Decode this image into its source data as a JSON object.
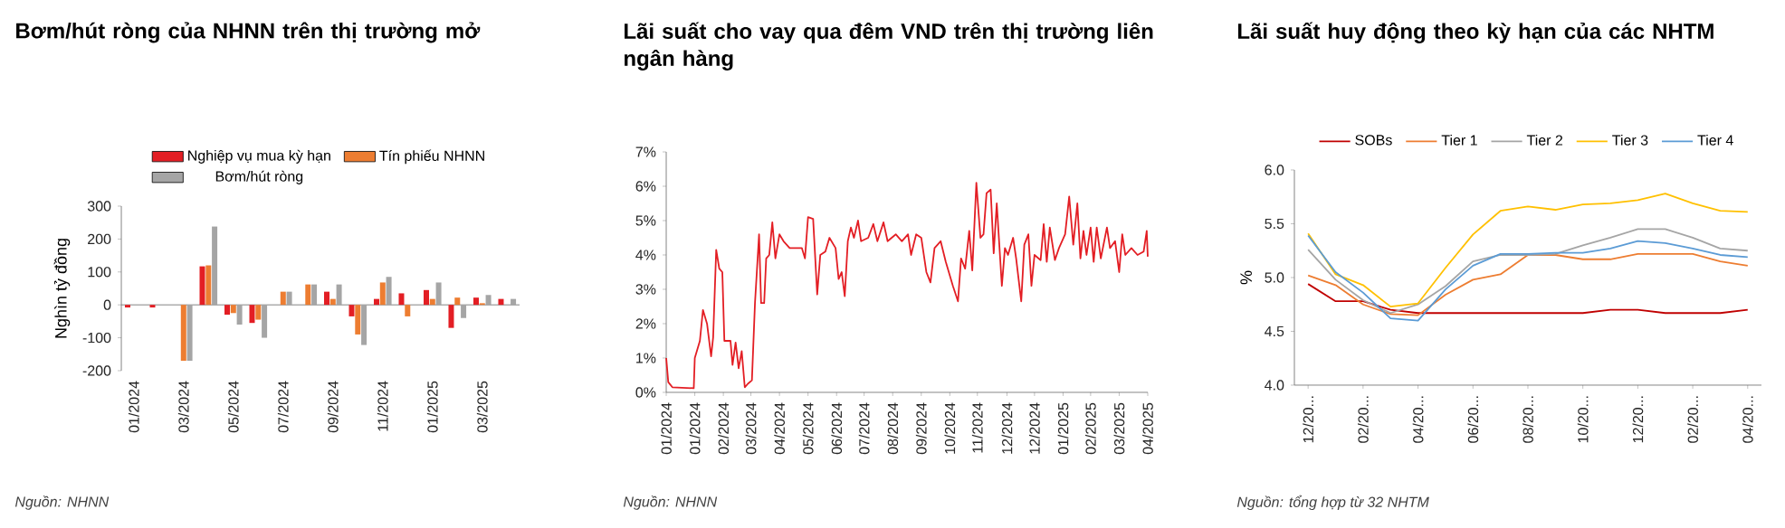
{
  "chart_data": [
    {
      "type": "bar",
      "title": "Bơm/hút ròng của NHNN trên thị trường mở",
      "ylabel": "Nghìn tỷ đồng",
      "annotations": [
        "Nguồn: NHNN"
      ],
      "categories": [
        "01/2024",
        null,
        "03/2024",
        null,
        "05/2024",
        null,
        "07/2024",
        null,
        "09/2024",
        null,
        "11/2024",
        null,
        "01/2025",
        null,
        "03/2025",
        null
      ],
      "series": [
        {
          "name": "Nghiệp vụ mua kỳ hạn",
          "color": "#e31e24",
          "values": [
            -8,
            -8,
            0,
            117,
            -30,
            -55,
            0,
            0,
            40,
            -35,
            18,
            35,
            45,
            -70,
            22,
            18
          ]
        },
        {
          "name": "Tín phiếu NHNN",
          "color": "#ed7d31",
          "values": [
            0,
            0,
            -170,
            120,
            -25,
            -45,
            40,
            62,
            18,
            -90,
            68,
            -35,
            18,
            22,
            5,
            0
          ]
        },
        {
          "name": "Bơm/hút ròng",
          "color": "#a5a5a5",
          "values": [
            null,
            null,
            -170,
            238,
            -60,
            -100,
            40,
            62,
            62,
            -122,
            85,
            0,
            68,
            -40,
            30,
            18
          ]
        }
      ],
      "ylim": [
        -200,
        300
      ],
      "yticks": [
        -200,
        -100,
        0,
        100,
        200,
        300
      ],
      "legend": "top"
    },
    {
      "type": "line",
      "title": "Lãi suất cho vay qua đêm VND trên thị trường liên ngân hàng",
      "annotations": [
        "Nguồn: NHNN"
      ],
      "color": "#e31e24",
      "x": [
        "2024-01-02",
        "2024-01-04",
        "2024-01-08",
        "2024-01-29",
        "2024-01-30",
        "2024-02-04",
        "2024-02-07",
        "2024-02-11",
        "2024-02-15",
        "2024-02-17",
        "2024-02-20",
        "2024-02-23",
        "2024-02-26",
        "2024-02-28",
        "2024-03-05",
        "2024-03-07",
        "2024-03-10",
        "2024-03-13",
        "2024-03-16",
        "2024-03-19",
        "2024-03-22",
        "2024-03-26",
        "2024-03-29",
        "2024-04-02",
        "2024-04-04",
        "2024-04-07",
        "2024-04-09",
        "2024-04-12",
        "2024-04-15",
        "2024-04-18",
        "2024-04-22",
        "2024-04-26",
        "2024-05-02",
        "2024-05-14",
        "2024-05-17",
        "2024-05-20",
        "2024-05-25",
        "2024-05-29",
        "2024-06-01",
        "2024-06-06",
        "2024-06-10",
        "2024-06-16",
        "2024-06-19",
        "2024-06-22",
        "2024-06-25",
        "2024-06-28",
        "2024-07-01",
        "2024-07-04",
        "2024-07-08",
        "2024-07-11",
        "2024-07-18",
        "2024-07-23",
        "2024-07-27",
        "2024-08-02",
        "2024-08-06",
        "2024-08-14",
        "2024-08-20",
        "2024-08-26",
        "2024-08-29",
        "2024-09-03",
        "2024-09-08",
        "2024-09-13",
        "2024-09-17",
        "2024-09-21",
        "2024-09-27",
        "2024-10-02",
        "2024-10-09",
        "2024-10-14",
        "2024-10-17",
        "2024-10-21",
        "2024-10-25",
        "2024-10-28",
        "2024-11-01",
        "2024-11-05",
        "2024-11-08",
        "2024-11-11",
        "2024-11-15",
        "2024-11-18",
        "2024-11-21",
        "2024-11-26",
        "2024-11-29",
        "2024-12-02",
        "2024-12-07",
        "2024-12-10",
        "2024-12-15",
        "2024-12-18",
        "2024-12-22",
        "2024-12-25",
        "2024-12-28",
        "2025-01-03",
        "2025-01-06",
        "2025-01-09",
        "2025-01-12",
        "2025-01-17",
        "2025-01-21",
        "2025-01-27",
        "2025-01-31",
        "2025-02-04",
        "2025-02-08",
        "2025-02-11",
        "2025-02-14",
        "2025-02-17",
        "2025-02-21",
        "2025-02-24",
        "2025-02-27",
        "2025-03-03",
        "2025-03-09",
        "2025-03-12",
        "2025-03-17",
        "2025-03-21",
        "2025-03-24",
        "2025-03-27",
        "2025-04-02",
        "2025-04-08",
        "2025-04-14",
        "2025-04-17",
        "2025-04-18"
      ],
      "values": [
        1.0,
        0.3,
        0.15,
        0.12,
        1.0,
        1.5,
        2.4,
        2.0,
        1.05,
        1.6,
        4.15,
        3.6,
        3.5,
        1.5,
        1.5,
        0.8,
        1.45,
        0.7,
        1.2,
        0.15,
        0.25,
        0.35,
        2.6,
        4.6,
        2.6,
        2.6,
        3.9,
        4.0,
        4.95,
        3.9,
        4.6,
        4.4,
        4.2,
        4.2,
        3.9,
        5.1,
        5.05,
        2.85,
        4.0,
        4.1,
        4.5,
        4.2,
        3.3,
        3.5,
        2.8,
        4.4,
        4.8,
        4.5,
        5.0,
        4.4,
        4.5,
        4.9,
        4.4,
        4.95,
        4.4,
        4.6,
        4.4,
        4.6,
        4.0,
        4.6,
        4.5,
        3.5,
        3.2,
        4.2,
        4.4,
        3.8,
        3.1,
        2.65,
        3.9,
        3.6,
        4.7,
        3.55,
        6.1,
        4.5,
        4.6,
        5.8,
        5.9,
        4.05,
        5.5,
        3.1,
        4.2,
        4.0,
        4.5,
        3.9,
        2.65,
        4.3,
        4.6,
        3.1,
        4.0,
        3.85,
        4.9,
        3.8,
        4.8,
        3.85,
        4.2,
        4.6,
        5.7,
        4.3,
        5.5,
        3.9,
        4.7,
        4.0,
        4.8,
        3.8,
        4.8,
        3.9,
        4.8,
        4.2,
        4.4,
        3.5,
        4.6,
        4.0,
        4.2,
        4.0,
        4.1,
        4.7,
        3.95
      ],
      "xlim": [
        "2024-01-02",
        "2025-04-18"
      ],
      "xticks": [
        {
          "value": "2024-01-02",
          "label": "01/2024"
        },
        {
          "value": "2024-01-30",
          "label": "01/2024"
        },
        {
          "value": "2024-02-27",
          "label": "02/2024"
        },
        {
          "value": "2024-03-25",
          "label": "03/2024"
        },
        {
          "value": "2024-04-22",
          "label": "04/2024"
        },
        {
          "value": "2024-05-20",
          "label": "05/2024"
        },
        {
          "value": "2024-06-17",
          "label": "06/2024"
        },
        {
          "value": "2024-07-14",
          "label": "07/2024"
        },
        {
          "value": "2024-08-11",
          "label": "08/2024"
        },
        {
          "value": "2024-09-08",
          "label": "09/2024"
        },
        {
          "value": "2024-10-06",
          "label": "10/2024"
        },
        {
          "value": "2024-11-02",
          "label": "11/2024"
        },
        {
          "value": "2024-12-01",
          "label": "12/2024"
        },
        {
          "value": "2024-12-28",
          "label": "12/2024"
        },
        {
          "value": "2025-01-25",
          "label": "01/2025"
        },
        {
          "value": "2025-02-21",
          "label": "02/2025"
        },
        {
          "value": "2025-03-21",
          "label": "03/2025"
        },
        {
          "value": "2025-04-18",
          "label": "04/2025"
        }
      ],
      "ylim": [
        0,
        7
      ],
      "yticks": [
        {
          "value": 0,
          "label": "0%"
        },
        {
          "value": 1,
          "label": "1%"
        },
        {
          "value": 2,
          "label": "2%"
        },
        {
          "value": 3,
          "label": "3%"
        },
        {
          "value": 4,
          "label": "4%"
        },
        {
          "value": 5,
          "label": "5%"
        },
        {
          "value": 6,
          "label": "6%"
        },
        {
          "value": 7,
          "label": "7%"
        }
      ]
    },
    {
      "type": "line",
      "title": "Lãi suất huy động theo kỳ hạn của các NHTM",
      "ylabel": "%",
      "annotations": [
        "Nguồn: tổng hợp từ 32 NHTM"
      ],
      "categories": [
        "12/20...",
        null,
        "02/20...",
        null,
        "04/20...",
        null,
        "06/20...",
        null,
        "08/20...",
        null,
        "10/20...",
        null,
        "12/20...",
        null,
        "02/20...",
        null,
        "04/20..."
      ],
      "series": [
        {
          "name": "SOBs",
          "color": "#c00000",
          "values": [
            4.94,
            4.78,
            4.78,
            4.7,
            4.67,
            4.67,
            4.67,
            4.67,
            4.67,
            4.67,
            4.67,
            4.7,
            4.7,
            4.67,
            4.67,
            4.67,
            4.7
          ]
        },
        {
          "name": "Tier 1",
          "color": "#ed7d31",
          "values": [
            5.02,
            4.93,
            4.75,
            4.66,
            4.65,
            4.84,
            4.98,
            5.03,
            5.21,
            5.21,
            5.17,
            5.17,
            5.22,
            5.22,
            5.22,
            5.15,
            5.11
          ]
        },
        {
          "name": "Tier 2",
          "color": "#a5a5a5",
          "values": [
            5.26,
            4.98,
            4.79,
            4.67,
            4.75,
            4.92,
            5.15,
            5.21,
            5.21,
            5.22,
            5.3,
            5.37,
            5.45,
            5.45,
            5.37,
            5.27,
            5.25
          ]
        },
        {
          "name": "Tier 3",
          "color": "#ffc000",
          "values": [
            5.41,
            5.03,
            4.93,
            4.73,
            4.76,
            5.09,
            5.4,
            5.62,
            5.66,
            5.63,
            5.68,
            5.69,
            5.72,
            5.78,
            5.69,
            5.62,
            5.61
          ]
        },
        {
          "name": "Tier 4",
          "color": "#5b9bd5",
          "values": [
            5.39,
            5.05,
            4.86,
            4.62,
            4.6,
            4.89,
            5.11,
            5.22,
            5.22,
            5.23,
            5.23,
            5.27,
            5.34,
            5.32,
            5.27,
            5.21,
            5.19
          ]
        }
      ],
      "ylim": [
        4,
        6
      ],
      "yticks": [
        {
          "value": 4,
          "label": "4.0"
        },
        {
          "value": 4.5,
          "label": "4.5"
        },
        {
          "value": 5,
          "label": "5.0"
        },
        {
          "value": 5.5,
          "label": "5.5"
        },
        {
          "value": 6,
          "label": "6.0"
        }
      ],
      "legend": "top"
    }
  ]
}
